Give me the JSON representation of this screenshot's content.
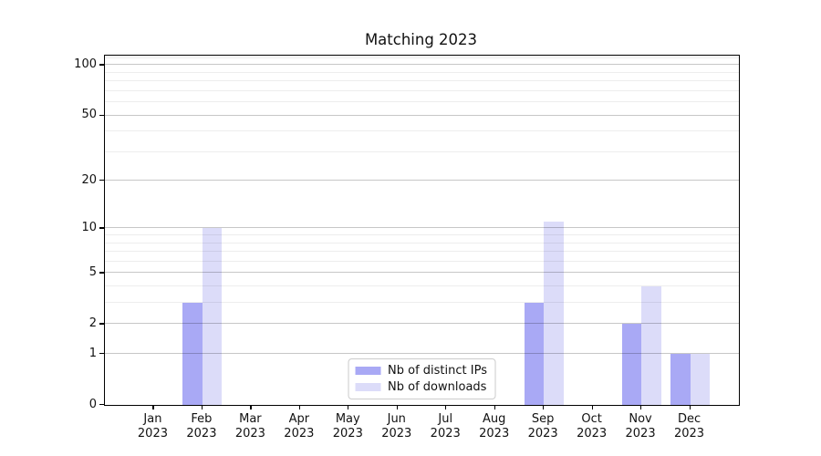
{
  "chart_data": {
    "type": "bar",
    "title": "Matching 2023",
    "categories": [
      "Jan",
      "Feb",
      "Mar",
      "Apr",
      "May",
      "Jun",
      "Jul",
      "Aug",
      "Sep",
      "Oct",
      "Nov",
      "Dec"
    ],
    "category_year": "2023",
    "series": [
      {
        "name": "Nb of distinct IPs",
        "color": "#a9a9f5",
        "values": [
          0,
          3,
          0,
          0,
          0,
          0,
          0,
          0,
          3,
          0,
          2,
          1
        ]
      },
      {
        "name": "Nb of downloads",
        "color": "#dcdcf9",
        "values": [
          0,
          10,
          0,
          0,
          0,
          0,
          0,
          0,
          11,
          0,
          4,
          1
        ]
      }
    ],
    "xlabel": "",
    "ylabel": "",
    "y_scale": "log1p",
    "y_ticks": [
      0,
      1,
      2,
      5,
      10,
      20,
      50,
      100
    ],
    "y_minor_gridlines": [
      3,
      4,
      6,
      7,
      8,
      9,
      30,
      40,
      60,
      70,
      80,
      90,
      110
    ],
    "ylim": [
      0,
      114
    ],
    "grid": "horizontal",
    "legend_position": "lower center"
  },
  "colors": {
    "bar_distinct_ips": "#a9a9f5",
    "bar_downloads": "#dcdcf9",
    "major_grid": "#c7c7c7",
    "minor_grid": "#ededed",
    "axis_text": "#111111",
    "spine": "#000000",
    "legend_border": "#cccccc",
    "background": "#ffffff"
  }
}
